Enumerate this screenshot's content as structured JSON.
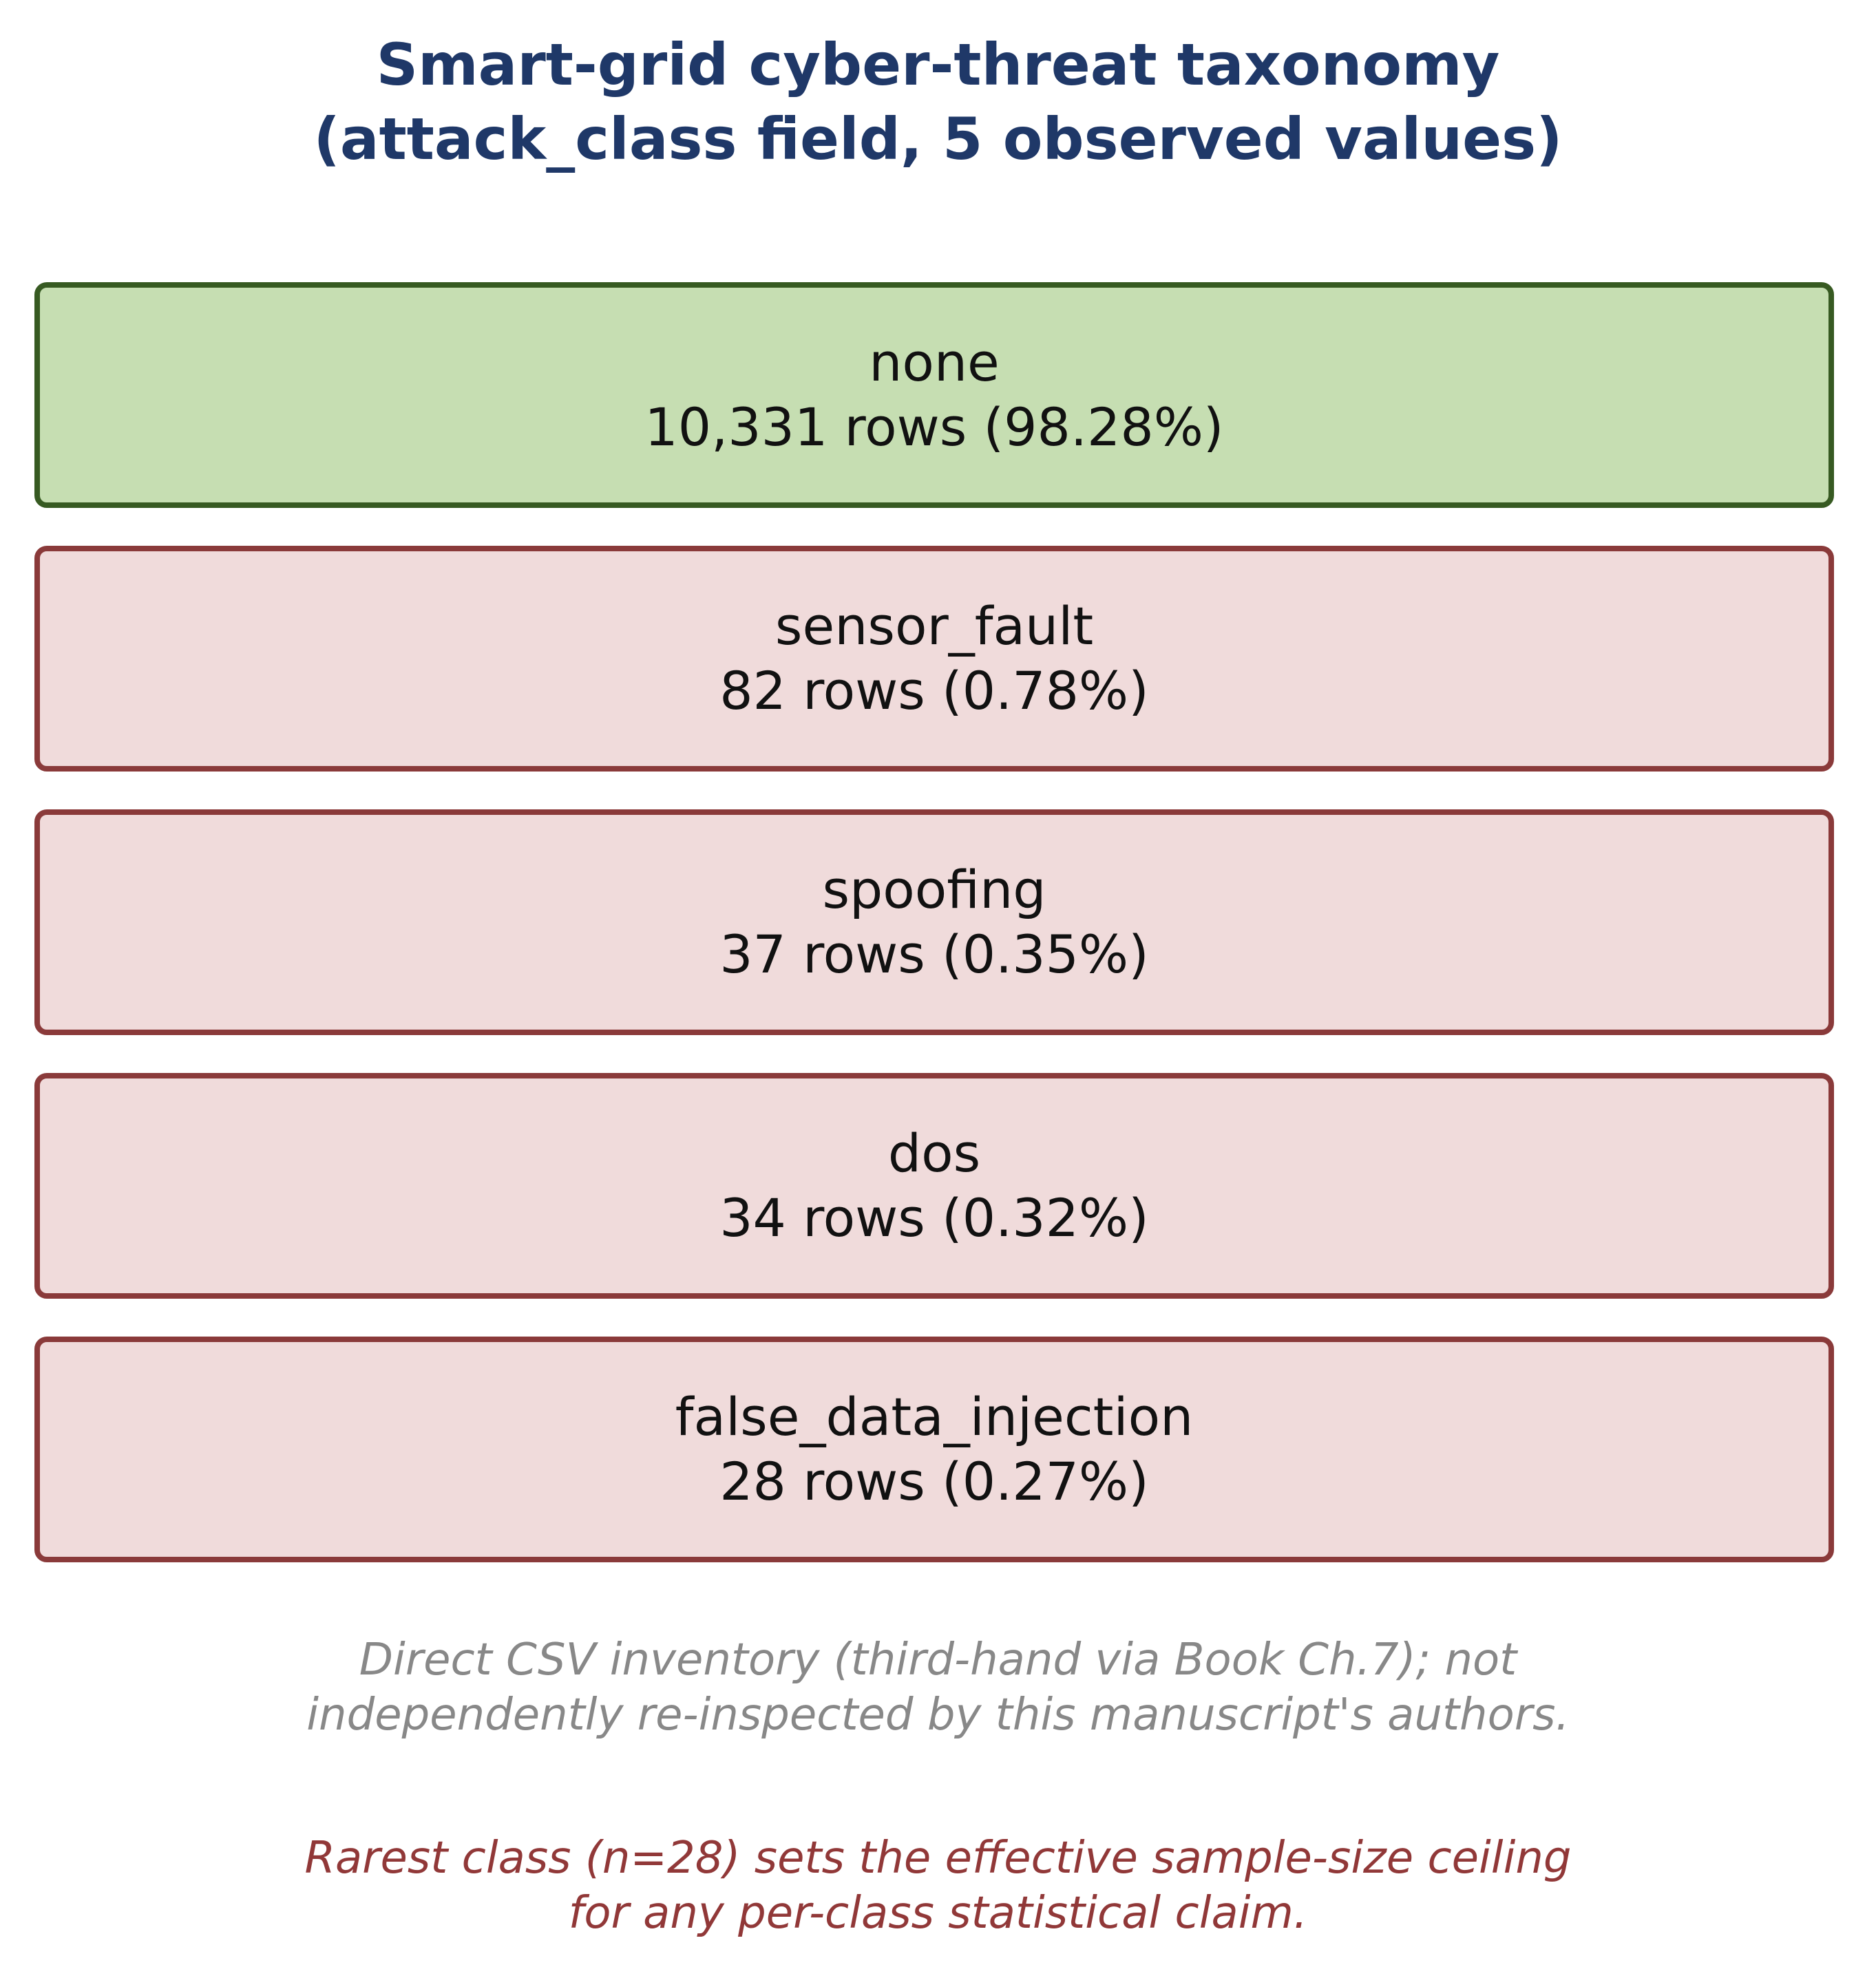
{
  "title": {
    "line1": "Smart-grid cyber-threat taxonomy",
    "line2": "(attack_class field, 5 observed values)"
  },
  "classes": [
    {
      "name": "none",
      "stats": "10,331 rows (98.28%)",
      "rows": 10331,
      "percent": 98.28,
      "kind": "benign"
    },
    {
      "name": "sensor_fault",
      "stats": "82 rows (0.78%)",
      "rows": 82,
      "percent": 0.78,
      "kind": "attack"
    },
    {
      "name": "spoofing",
      "stats": "37 rows (0.35%)",
      "rows": 37,
      "percent": 0.35,
      "kind": "attack"
    },
    {
      "name": "dos",
      "stats": "34 rows (0.32%)",
      "rows": 34,
      "percent": 0.32,
      "kind": "attack"
    },
    {
      "name": "false_data_injection",
      "stats": "28 rows (0.27%)",
      "rows": 28,
      "percent": 0.27,
      "kind": "attack"
    }
  ],
  "notes": {
    "provenance_line1": "Direct CSV inventory (third-hand via Book Ch.7); not",
    "provenance_line2": "independently re-inspected by this manuscript's authors.",
    "caveat_line1": "Rarest class (n=28) sets the effective sample-size ceiling",
    "caveat_line2": "for any per-class statistical claim."
  },
  "colors": {
    "title": "#1f3868",
    "benign_fill": "#c6deb2",
    "benign_border": "#375a22",
    "attack_fill": "#f0dbdb",
    "attack_border": "#8a3a3a",
    "note_grey": "#888888",
    "note_red": "#913838"
  }
}
